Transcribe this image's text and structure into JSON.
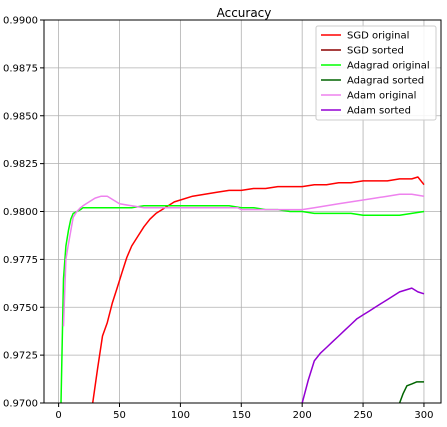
{
  "chart_data": {
    "type": "line",
    "title": "Accuracy",
    "xlabel": "",
    "ylabel": "",
    "xlim": [
      -12,
      314
    ],
    "ylim": [
      0.97,
      0.99
    ],
    "xticks": [
      "0",
      "50",
      "100",
      "150",
      "200",
      "250",
      "300"
    ],
    "yticks": [
      "0.9700",
      "0.9725",
      "0.9750",
      "0.9775",
      "0.9800",
      "0.9825",
      "0.9850",
      "0.9875",
      "0.9900"
    ],
    "grid": true,
    "legend_position": "top-right",
    "series": [
      {
        "name": "SGD original",
        "color": "#ff0000",
        "x": [
          28,
          32,
          36,
          40,
          44,
          48,
          52,
          56,
          60,
          65,
          70,
          75,
          80,
          85,
          90,
          95,
          100,
          110,
          120,
          130,
          140,
          150,
          160,
          170,
          180,
          190,
          200,
          210,
          220,
          230,
          240,
          250,
          260,
          270,
          280,
          290,
          295,
          300
        ],
        "y": [
          0.97,
          0.9718,
          0.9735,
          0.9742,
          0.9752,
          0.976,
          0.9768,
          0.9776,
          0.9782,
          0.9787,
          0.9792,
          0.9796,
          0.9799,
          0.9801,
          0.9803,
          0.9805,
          0.9806,
          0.9808,
          0.9809,
          0.981,
          0.9811,
          0.9811,
          0.9812,
          0.9812,
          0.9813,
          0.9813,
          0.9813,
          0.9814,
          0.9814,
          0.9815,
          0.9815,
          0.9816,
          0.9816,
          0.9816,
          0.9817,
          0.9817,
          0.9818,
          0.9814
        ]
      },
      {
        "name": "SGD sorted",
        "color": "#8b0000",
        "x": [],
        "y": []
      },
      {
        "name": "Adagrad original",
        "color": "#00ff00",
        "x": [
          2,
          4,
          6,
          8,
          10,
          12,
          15,
          18,
          20,
          25,
          30,
          40,
          50,
          60,
          70,
          80,
          90,
          100,
          110,
          120,
          130,
          140,
          150,
          160,
          170,
          180,
          190,
          200,
          210,
          220,
          230,
          240,
          250,
          260,
          270,
          280,
          290,
          300
        ],
        "y": [
          0.97,
          0.9765,
          0.9782,
          0.979,
          0.9796,
          0.9799,
          0.98,
          0.9801,
          0.9802,
          0.9802,
          0.9802,
          0.9802,
          0.9802,
          0.9802,
          0.9803,
          0.9803,
          0.9803,
          0.9803,
          0.9803,
          0.9803,
          0.9803,
          0.9803,
          0.9802,
          0.9802,
          0.9801,
          0.9801,
          0.98,
          0.98,
          0.9799,
          0.9799,
          0.9799,
          0.9799,
          0.9798,
          0.9798,
          0.9798,
          0.9798,
          0.9799,
          0.98
        ]
      },
      {
        "name": "Adagrad sorted",
        "color": "#006400",
        "x": [
          280,
          283,
          286,
          290,
          294,
          298,
          300
        ],
        "y": [
          0.97,
          0.9705,
          0.9709,
          0.971,
          0.9711,
          0.9711,
          0.9711
        ]
      },
      {
        "name": "Adam original",
        "color": "#ee82ee",
        "x": [
          4,
          6,
          8,
          10,
          12,
          15,
          18,
          20,
          25,
          30,
          35,
          40,
          45,
          50,
          60,
          70,
          80,
          90,
          100,
          110,
          120,
          130,
          140,
          147,
          150,
          160,
          170,
          180,
          190,
          200,
          210,
          220,
          230,
          240,
          250,
          260,
          270,
          280,
          290,
          300
        ],
        "y": [
          0.974,
          0.9775,
          0.9783,
          0.979,
          0.9797,
          0.98,
          0.9802,
          0.9803,
          0.9805,
          0.9807,
          0.9808,
          0.9808,
          0.9806,
          0.9804,
          0.9803,
          0.9802,
          0.9802,
          0.9802,
          0.9802,
          0.9802,
          0.9802,
          0.9802,
          0.9802,
          0.9802,
          0.9801,
          0.9801,
          0.9801,
          0.9801,
          0.9801,
          0.9801,
          0.9802,
          0.9803,
          0.9804,
          0.9805,
          0.9806,
          0.9807,
          0.9808,
          0.9809,
          0.9809,
          0.9808
        ]
      },
      {
        "name": "Adam sorted",
        "color": "#9400d3",
        "x": [
          200,
          205,
          210,
          215,
          220,
          225,
          230,
          235,
          240,
          245,
          250,
          255,
          260,
          265,
          270,
          275,
          280,
          285,
          290,
          295,
          300
        ],
        "y": [
          0.97,
          0.9712,
          0.9722,
          0.9726,
          0.9729,
          0.9732,
          0.9735,
          0.9738,
          0.9741,
          0.9744,
          0.9746,
          0.9748,
          0.975,
          0.9752,
          0.9754,
          0.9756,
          0.9758,
          0.9759,
          0.976,
          0.9758,
          0.9757
        ]
      }
    ]
  }
}
